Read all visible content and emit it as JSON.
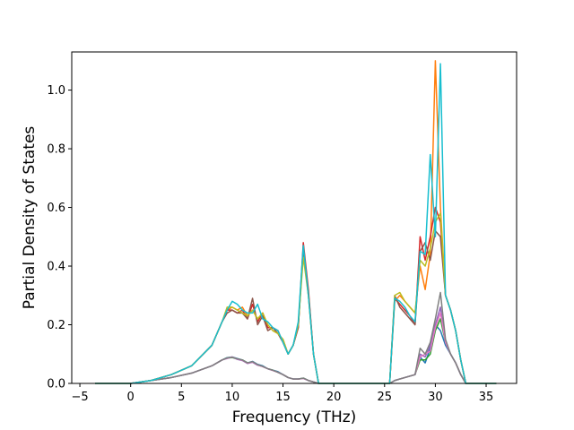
{
  "chart_data": {
    "type": "line",
    "title": "",
    "xlabel": "Frequency (THz)",
    "ylabel": "Partial Density of States",
    "xlim": [
      -5.8,
      38
    ],
    "ylim": [
      0,
      1.13
    ],
    "xticks": [
      -5,
      0,
      5,
      10,
      15,
      20,
      25,
      30,
      35
    ],
    "yticks": [
      0.0,
      0.2,
      0.4,
      0.6,
      0.8,
      1.0
    ],
    "xtick_labels": [
      "−5",
      "0",
      "5",
      "10",
      "15",
      "20",
      "25",
      "30",
      "35"
    ],
    "ytick_labels": [
      "0.0",
      "0.2",
      "0.4",
      "0.6",
      "0.8",
      "1.0"
    ],
    "grid": false,
    "legend": "none",
    "series": [
      {
        "color": "#1f77b4",
        "x": [
          -3.5,
          -1,
          0,
          2,
          4,
          6,
          8,
          9,
          9.5,
          10,
          10.5,
          11,
          11.5,
          12,
          12.5,
          13,
          13.5,
          14,
          14.5,
          15,
          15.5,
          16,
          16.5,
          17,
          17.5,
          18,
          18.5,
          19,
          20,
          22,
          24,
          25.5,
          26,
          26.5,
          27,
          27.5,
          28,
          28.5,
          29,
          29.5,
          30,
          30.5,
          31,
          31.5,
          32,
          32.5,
          33,
          34,
          36
        ],
        "y": [
          0,
          0,
          0,
          0.01,
          0.02,
          0.035,
          0.06,
          0.08,
          0.088,
          0.09,
          0.085,
          0.08,
          0.07,
          0.075,
          0.065,
          0.06,
          0.05,
          0.045,
          0.04,
          0.03,
          0.02,
          0.015,
          0.015,
          0.018,
          0.01,
          0.005,
          0,
          0,
          0,
          0,
          0,
          0,
          0.01,
          0.015,
          0.02,
          0.025,
          0.03,
          0.09,
          0.07,
          0.12,
          0.2,
          0.18,
          0.13,
          0.1,
          0.07,
          0.03,
          0,
          0,
          0
        ]
      },
      {
        "color": "#ff7f0e",
        "x": [
          -3.5,
          -1,
          0,
          2,
          4,
          6,
          8,
          9,
          9.5,
          10,
          10.5,
          11,
          11.5,
          12,
          12.5,
          13,
          13.5,
          14,
          14.5,
          15,
          15.5,
          16,
          16.5,
          17,
          17.5,
          18,
          18.5,
          19,
          20,
          22,
          24,
          25.5,
          26,
          26.5,
          27,
          27.5,
          28,
          28.5,
          29,
          29.5,
          30,
          30.5,
          31,
          31.5,
          32,
          32.5,
          33,
          34,
          36
        ],
        "y": [
          0,
          0,
          0,
          0.01,
          0.03,
          0.06,
          0.13,
          0.21,
          0.25,
          0.26,
          0.25,
          0.26,
          0.23,
          0.25,
          0.22,
          0.24,
          0.2,
          0.18,
          0.17,
          0.15,
          0.1,
          0.13,
          0.2,
          0.45,
          0.3,
          0.1,
          0,
          0,
          0,
          0,
          0,
          0,
          0.28,
          0.3,
          0.28,
          0.26,
          0.24,
          0.4,
          0.32,
          0.44,
          1.1,
          0.6,
          0.3,
          0.25,
          0.18,
          0.08,
          0,
          0,
          0
        ]
      },
      {
        "color": "#2ca02c",
        "x": [
          -3.5,
          -1,
          0,
          2,
          4,
          6,
          8,
          9,
          9.5,
          10,
          10.5,
          11,
          11.5,
          12,
          12.5,
          13,
          13.5,
          14,
          14.5,
          15,
          15.5,
          16,
          16.5,
          17,
          17.5,
          18,
          18.5,
          19,
          20,
          22,
          24,
          25.5,
          26,
          26.5,
          27,
          27.5,
          28,
          28.5,
          29,
          29.5,
          30,
          30.5,
          31,
          31.5,
          32,
          32.5,
          33,
          34,
          36
        ],
        "y": [
          0,
          0,
          0,
          0.01,
          0.02,
          0.035,
          0.06,
          0.08,
          0.087,
          0.088,
          0.083,
          0.08,
          0.07,
          0.073,
          0.063,
          0.058,
          0.05,
          0.045,
          0.038,
          0.03,
          0.02,
          0.015,
          0.015,
          0.018,
          0.01,
          0.005,
          0,
          0,
          0,
          0,
          0,
          0,
          0.01,
          0.015,
          0.02,
          0.025,
          0.03,
          0.08,
          0.08,
          0.1,
          0.18,
          0.22,
          0.14,
          0.1,
          0.07,
          0.03,
          0,
          0,
          0
        ]
      },
      {
        "color": "#d62728",
        "x": [
          -3.5,
          -1,
          0,
          2,
          4,
          6,
          8,
          9,
          9.5,
          10,
          10.5,
          11,
          11.5,
          12,
          12.5,
          13,
          13.5,
          14,
          14.5,
          15,
          15.5,
          16,
          16.5,
          17,
          17.5,
          18,
          18.5,
          19,
          20,
          22,
          24,
          25.5,
          26,
          26.5,
          27,
          27.5,
          28,
          28.5,
          29,
          29.5,
          30,
          30.5,
          31,
          31.5,
          32,
          32.5,
          33,
          34,
          36
        ],
        "y": [
          0,
          0,
          0,
          0.01,
          0.03,
          0.06,
          0.13,
          0.21,
          0.25,
          0.25,
          0.24,
          0.25,
          0.22,
          0.27,
          0.21,
          0.24,
          0.19,
          0.19,
          0.18,
          0.14,
          0.1,
          0.13,
          0.19,
          0.48,
          0.32,
          0.1,
          0,
          0,
          0,
          0,
          0,
          0,
          0.29,
          0.27,
          0.25,
          0.23,
          0.2,
          0.5,
          0.42,
          0.5,
          0.6,
          0.55,
          0.3,
          0.25,
          0.18,
          0.08,
          0,
          0,
          0
        ]
      },
      {
        "color": "#9467bd",
        "x": [
          -3.5,
          -1,
          0,
          2,
          4,
          6,
          8,
          9,
          9.5,
          10,
          10.5,
          11,
          11.5,
          12,
          12.5,
          13,
          13.5,
          14,
          14.5,
          15,
          15.5,
          16,
          16.5,
          17,
          17.5,
          18,
          18.5,
          19,
          20,
          22,
          24,
          25.5,
          26,
          26.5,
          27,
          27.5,
          28,
          28.5,
          29,
          29.5,
          30,
          30.5,
          31,
          31.5,
          32,
          32.5,
          33,
          34,
          36
        ],
        "y": [
          0,
          0,
          0,
          0.01,
          0.02,
          0.035,
          0.06,
          0.08,
          0.085,
          0.09,
          0.082,
          0.078,
          0.068,
          0.072,
          0.062,
          0.058,
          0.05,
          0.044,
          0.038,
          0.03,
          0.02,
          0.015,
          0.015,
          0.017,
          0.01,
          0.005,
          0,
          0,
          0,
          0,
          0,
          0,
          0.01,
          0.015,
          0.02,
          0.025,
          0.03,
          0.1,
          0.09,
          0.13,
          0.2,
          0.26,
          0.14,
          0.1,
          0.07,
          0.03,
          0,
          0,
          0
        ]
      },
      {
        "color": "#8c564b",
        "x": [
          -3.5,
          -1,
          0,
          2,
          4,
          6,
          8,
          9,
          9.5,
          10,
          10.5,
          11,
          11.5,
          12,
          12.5,
          13,
          13.5,
          14,
          14.5,
          15,
          15.5,
          16,
          16.5,
          17,
          17.5,
          18,
          18.5,
          19,
          20,
          22,
          24,
          25.5,
          26,
          26.5,
          27,
          27.5,
          28,
          28.5,
          29,
          29.5,
          30,
          30.5,
          31,
          31.5,
          32,
          32.5,
          33,
          34,
          36
        ],
        "y": [
          0,
          0,
          0,
          0.01,
          0.03,
          0.06,
          0.13,
          0.21,
          0.24,
          0.25,
          0.24,
          0.24,
          0.22,
          0.29,
          0.2,
          0.23,
          0.18,
          0.19,
          0.17,
          0.14,
          0.1,
          0.13,
          0.19,
          0.46,
          0.31,
          0.1,
          0,
          0,
          0,
          0,
          0,
          0,
          0.3,
          0.26,
          0.24,
          0.22,
          0.2,
          0.45,
          0.48,
          0.42,
          0.52,
          0.5,
          0.3,
          0.25,
          0.18,
          0.08,
          0,
          0,
          0
        ]
      },
      {
        "color": "#e377c2",
        "x": [
          -3.5,
          -1,
          0,
          2,
          4,
          6,
          8,
          9,
          9.5,
          10,
          10.5,
          11,
          11.5,
          12,
          12.5,
          13,
          13.5,
          14,
          14.5,
          15,
          15.5,
          16,
          16.5,
          17,
          17.5,
          18,
          18.5,
          19,
          20,
          22,
          24,
          25.5,
          26,
          26.5,
          27,
          27.5,
          28,
          28.5,
          29,
          29.5,
          30,
          30.5,
          31,
          31.5,
          32,
          32.5,
          33,
          34,
          36
        ],
        "y": [
          0,
          0,
          0,
          0.01,
          0.02,
          0.035,
          0.06,
          0.08,
          0.086,
          0.09,
          0.083,
          0.079,
          0.069,
          0.073,
          0.063,
          0.057,
          0.05,
          0.044,
          0.038,
          0.03,
          0.02,
          0.015,
          0.015,
          0.017,
          0.01,
          0.005,
          0,
          0,
          0,
          0,
          0,
          0,
          0.01,
          0.015,
          0.02,
          0.025,
          0.03,
          0.09,
          0.1,
          0.11,
          0.19,
          0.24,
          0.14,
          0.1,
          0.07,
          0.03,
          0,
          0,
          0
        ]
      },
      {
        "color": "#7f7f7f",
        "x": [
          -3.5,
          -1,
          0,
          2,
          4,
          6,
          8,
          9,
          9.5,
          10,
          10.5,
          11,
          11.5,
          12,
          12.5,
          13,
          13.5,
          14,
          14.5,
          15,
          15.5,
          16,
          16.5,
          17,
          17.5,
          18,
          18.5,
          19,
          20,
          22,
          24,
          25.5,
          26,
          26.5,
          27,
          27.5,
          28,
          28.5,
          29,
          29.5,
          30,
          30.5,
          31,
          31.5,
          32,
          32.5,
          33,
          34,
          36
        ],
        "y": [
          0,
          0,
          0,
          0.01,
          0.02,
          0.035,
          0.06,
          0.08,
          0.087,
          0.089,
          0.084,
          0.08,
          0.07,
          0.074,
          0.064,
          0.058,
          0.05,
          0.045,
          0.038,
          0.03,
          0.02,
          0.015,
          0.015,
          0.018,
          0.01,
          0.005,
          0,
          0,
          0,
          0,
          0,
          0,
          0.01,
          0.015,
          0.02,
          0.025,
          0.03,
          0.12,
          0.1,
          0.14,
          0.22,
          0.31,
          0.15,
          0.1,
          0.07,
          0.03,
          0,
          0,
          0
        ]
      },
      {
        "color": "#bcbd22",
        "x": [
          -3.5,
          -1,
          0,
          2,
          4,
          6,
          8,
          9,
          9.5,
          10,
          10.5,
          11,
          11.5,
          12,
          12.5,
          13,
          13.5,
          14,
          14.5,
          15,
          15.5,
          16,
          16.5,
          17,
          17.5,
          18,
          18.5,
          19,
          20,
          22,
          24,
          25.5,
          26,
          26.5,
          27,
          27.5,
          28,
          28.5,
          29,
          29.5,
          30,
          30.5,
          31,
          31.5,
          32,
          32.5,
          33,
          34,
          36
        ],
        "y": [
          0,
          0,
          0,
          0.01,
          0.03,
          0.06,
          0.13,
          0.21,
          0.26,
          0.26,
          0.25,
          0.24,
          0.23,
          0.25,
          0.22,
          0.24,
          0.2,
          0.18,
          0.17,
          0.15,
          0.1,
          0.13,
          0.2,
          0.43,
          0.3,
          0.1,
          0,
          0,
          0,
          0,
          0,
          0,
          0.3,
          0.31,
          0.28,
          0.26,
          0.24,
          0.42,
          0.4,
          0.46,
          0.55,
          0.58,
          0.3,
          0.25,
          0.18,
          0.08,
          0,
          0,
          0
        ]
      },
      {
        "color": "#17becf",
        "x": [
          -3.5,
          -1,
          0,
          2,
          4,
          6,
          8,
          9,
          9.5,
          10,
          10.5,
          11,
          11.5,
          12,
          12.5,
          13,
          13.5,
          14,
          14.5,
          15,
          15.5,
          16,
          16.5,
          17,
          17.5,
          18,
          18.5,
          19,
          20,
          22,
          24,
          25.5,
          26,
          26.5,
          27,
          27.5,
          28,
          28.5,
          29,
          29.5,
          30,
          30.5,
          31,
          31.5,
          32,
          32.5,
          33,
          34,
          36
        ],
        "y": [
          0,
          0,
          0,
          0.01,
          0.03,
          0.06,
          0.13,
          0.21,
          0.25,
          0.28,
          0.27,
          0.25,
          0.24,
          0.24,
          0.27,
          0.22,
          0.21,
          0.19,
          0.18,
          0.14,
          0.1,
          0.13,
          0.21,
          0.47,
          0.3,
          0.1,
          0,
          0,
          0,
          0,
          0,
          0,
          0.29,
          0.28,
          0.26,
          0.23,
          0.21,
          0.45,
          0.44,
          0.78,
          0.5,
          1.09,
          0.3,
          0.25,
          0.18,
          0.08,
          0,
          0,
          0
        ]
      }
    ]
  }
}
